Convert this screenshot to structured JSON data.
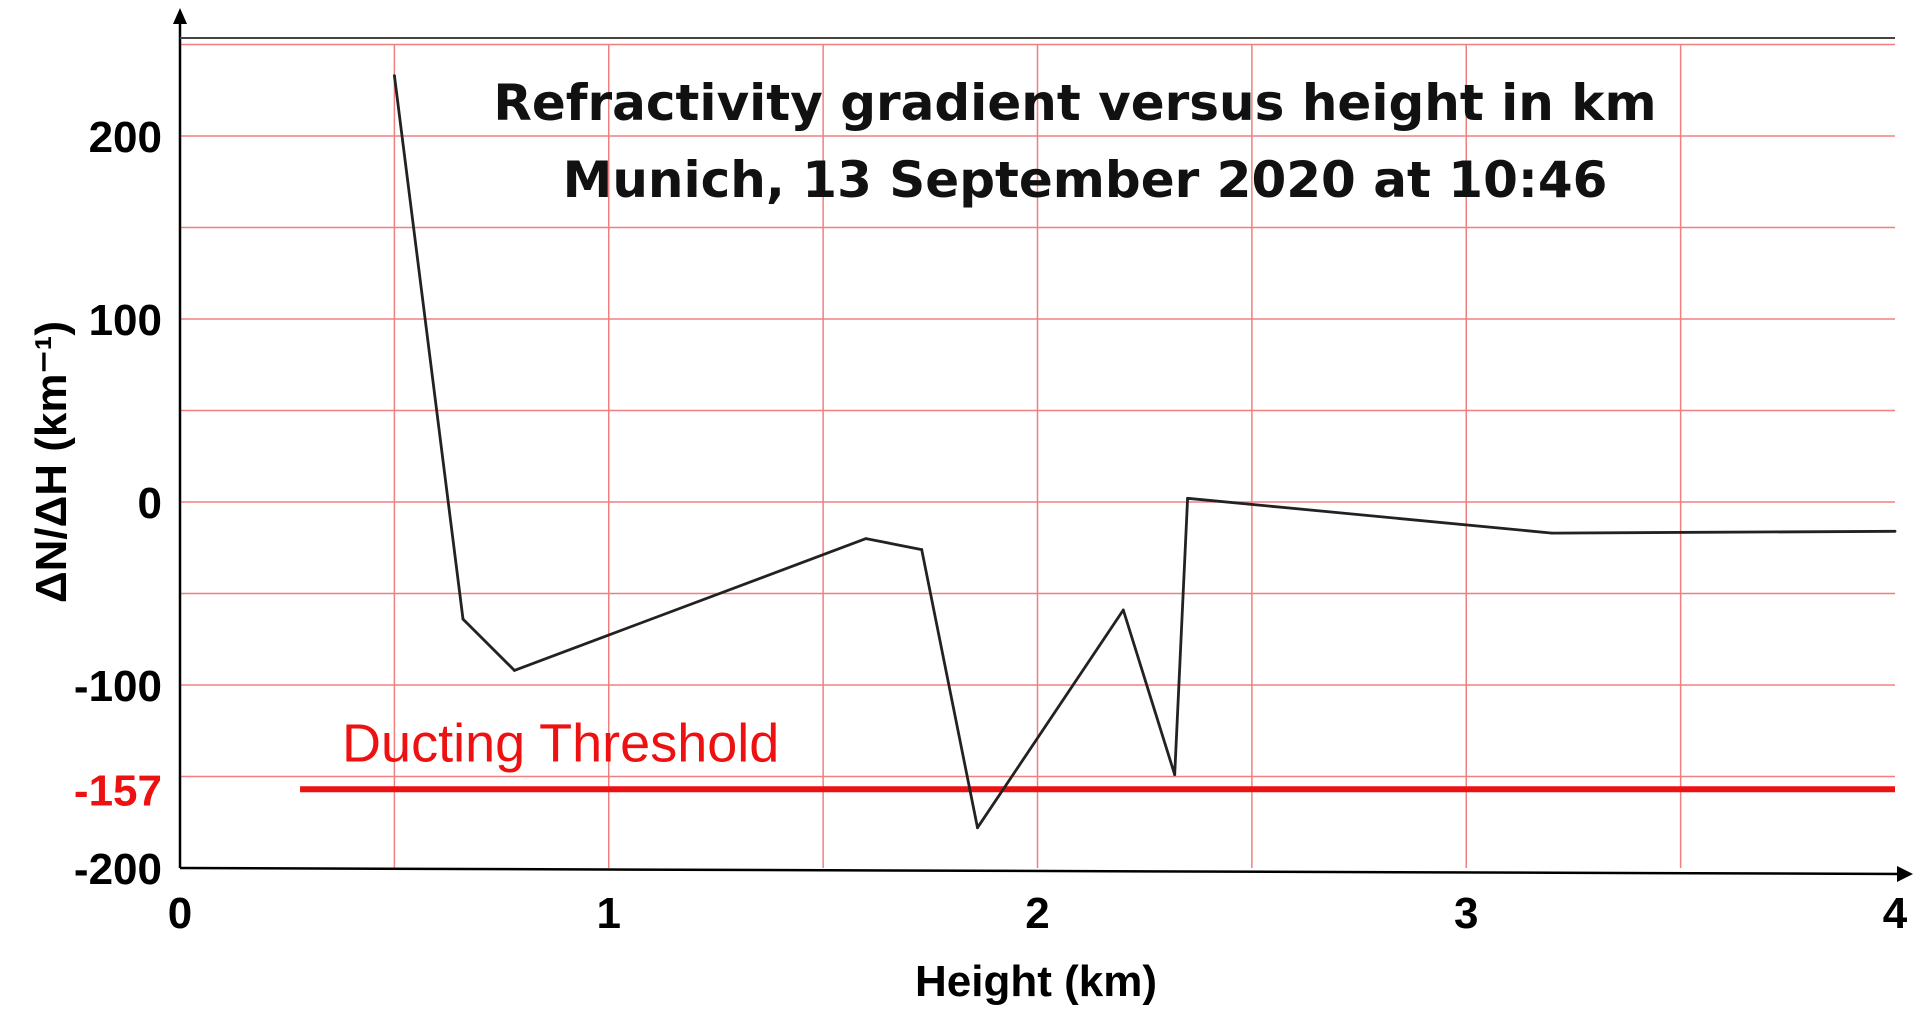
{
  "chart_data": {
    "type": "line",
    "title": "Refractivity gradient versus height in km",
    "subtitle": "Munich, 13 September 2020 at 10:46",
    "xlabel": "Height (km)",
    "ylabel": "ΔN/ΔH (km⁻¹)",
    "xlim": [
      0,
      4
    ],
    "ylim": [
      -200,
      250
    ],
    "x_ticks": [
      "0",
      "1",
      "2",
      "3",
      "4"
    ],
    "y_ticks": [
      "200",
      "100",
      "0",
      "-100",
      "-157",
      "-200"
    ],
    "grid": true,
    "series": [
      {
        "x": [
          0.5,
          0.66,
          0.78,
          1.6,
          1.73,
          1.86,
          2.2,
          2.32,
          2.35,
          3.2,
          4.0
        ],
        "y": [
          233,
          -64,
          -92,
          -20,
          -26,
          -178,
          -59,
          -149,
          2,
          -17,
          -16
        ]
      }
    ],
    "threshold": {
      "value": -157,
      "label": "Ducting Threshold",
      "x_range": [
        0.28,
        4.0
      ]
    },
    "colors": {
      "line": "#222222",
      "threshold": "#ee1111",
      "grid": "#f08080",
      "axis": "#000000"
    }
  }
}
